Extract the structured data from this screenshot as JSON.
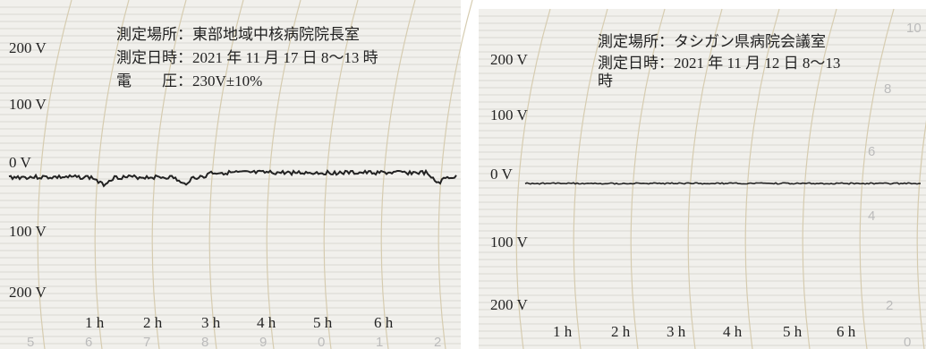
{
  "panels": [
    {
      "caption": [
        "測定場所：東部地域中核病院院長室",
        "測定日時：2021 年 11 月 17 日 8～13 時",
        "電　　圧：230V±10%"
      ],
      "y_labels": [
        "200 V",
        "100 V",
        "0 V",
        "100 V",
        "200 V"
      ],
      "hour_labels": [
        "1 h",
        "2 h",
        "3 h",
        "4 h",
        "5 h",
        "6 h"
      ],
      "scale_numbers": [
        "5",
        "6",
        "7",
        "8",
        "9",
        "0",
        "1",
        "2"
      ]
    },
    {
      "caption": [
        "測定場所：タシガン県病院会議室",
        "測定日時：2021 年 11 月 12 日 8～13",
        "時"
      ],
      "y_labels": [
        "200 V",
        "100 V",
        "0 V",
        "100 V",
        "200 V"
      ],
      "hour_labels": [
        "1 h",
        "2 h",
        "3 h",
        "4 h",
        "5 h",
        "6 h"
      ],
      "scale_numbers": [
        "10",
        "8",
        "6",
        "4",
        "2",
        "0"
      ]
    }
  ]
}
